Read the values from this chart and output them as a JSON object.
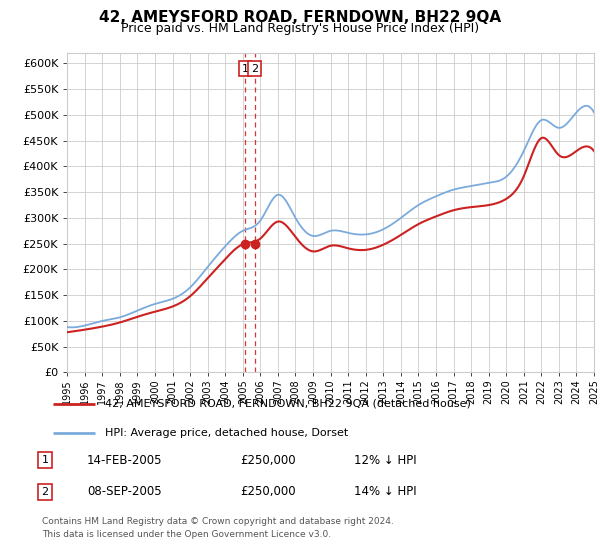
{
  "title": "42, AMEYSFORD ROAD, FERNDOWN, BH22 9QA",
  "subtitle": "Price paid vs. HM Land Registry's House Price Index (HPI)",
  "legend_line1": "42, AMEYSFORD ROAD, FERNDOWN, BH22 9QA (detached house)",
  "legend_line2": "HPI: Average price, detached house, Dorset",
  "transaction1_date": "14-FEB-2005",
  "transaction1_price": 250000,
  "transaction1_note": "12% ↓ HPI",
  "transaction2_date": "08-SEP-2005",
  "transaction2_price": 250000,
  "transaction2_note": "14% ↓ HPI",
  "footnote1": "Contains HM Land Registry data © Crown copyright and database right 2024.",
  "footnote2": "This data is licensed under the Open Government Licence v3.0.",
  "hpi_color": "#7aabdc",
  "price_color": "#cc2222",
  "background_color": "#ffffff",
  "grid_color": "#cccccc",
  "ylim": [
    0,
    620000
  ],
  "yticks": [
    0,
    50000,
    100000,
    150000,
    200000,
    250000,
    300000,
    350000,
    400000,
    450000,
    500000,
    550000,
    600000
  ],
  "hpi_data_years": [
    1995,
    1996,
    1997,
    1998,
    1999,
    2000,
    2001,
    2002,
    2003,
    2004,
    2005,
    2006,
    2007,
    2008,
    2009,
    2010,
    2011,
    2012,
    2013,
    2014,
    2015,
    2016,
    2017,
    2018,
    2019,
    2020,
    2021,
    2022,
    2023,
    2024,
    2025
  ],
  "hpi_data_values": [
    88000,
    91000,
    100000,
    107000,
    120000,
    133000,
    143000,
    165000,
    205000,
    245000,
    275000,
    295000,
    345000,
    300000,
    265000,
    275000,
    271000,
    268000,
    278000,
    300000,
    325000,
    342000,
    355000,
    362000,
    368000,
    380000,
    430000,
    490000,
    475000,
    505000,
    505000
  ],
  "price_data_years": [
    1995,
    1996,
    1997,
    1998,
    1999,
    2000,
    2001,
    2002,
    2003,
    2004,
    2005,
    2006,
    2007,
    2008,
    2009,
    2010,
    2011,
    2012,
    2013,
    2014,
    2015,
    2016,
    2017,
    2018,
    2019,
    2020,
    2021,
    2022,
    2023,
    2024,
    2025
  ],
  "price_data_values": [
    78000,
    83000,
    89000,
    97000,
    108000,
    118000,
    128000,
    148000,
    183000,
    220000,
    249000,
    260000,
    293000,
    263000,
    235000,
    246000,
    241000,
    238000,
    248000,
    267000,
    288000,
    303000,
    315000,
    321000,
    325000,
    337000,
    381000,
    455000,
    422000,
    430000,
    430000
  ],
  "transaction_years": [
    2005.12,
    2005.67
  ],
  "transaction_prices": [
    250000,
    250000
  ]
}
